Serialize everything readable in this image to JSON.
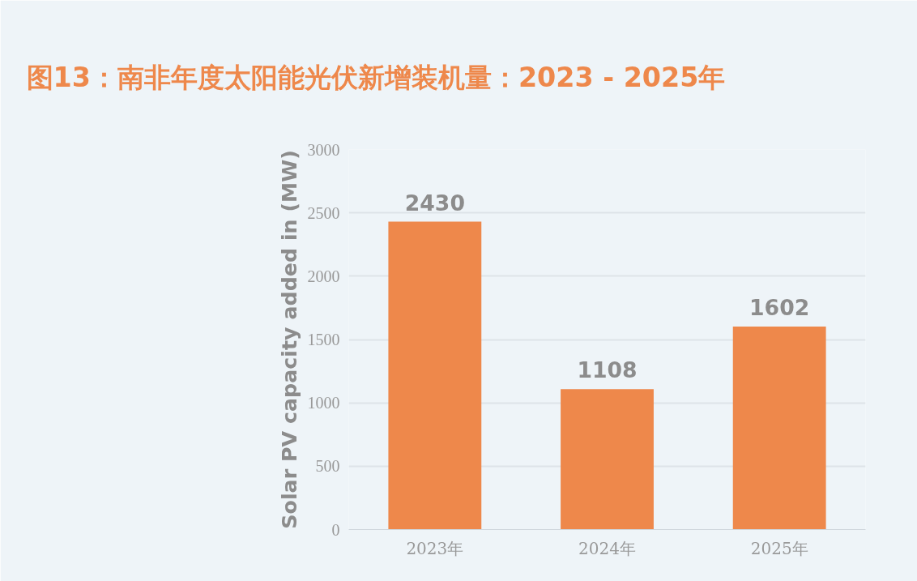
{
  "chart_data": {
    "type": "bar",
    "title": "图13：南非年度太阳能光伏新增装机量：2023 - 2025年",
    "categories": [
      "2023年",
      "2024年",
      "2025年"
    ],
    "values": [
      2430,
      1108,
      1602
    ],
    "color": "#ee884b",
    "ylabel": "Solar PV capacity added in (MW)",
    "ylim": [
      0,
      3000
    ],
    "yticks": [
      0,
      500,
      1000,
      1500,
      2000,
      2500,
      3000
    ],
    "grid": "y",
    "data_labels": true
  }
}
